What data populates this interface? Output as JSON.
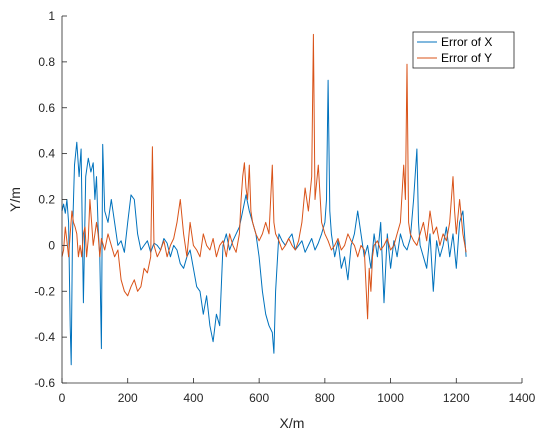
{
  "chart_data": {
    "type": "line",
    "xlabel": "X/m",
    "ylabel": "Y/m",
    "xlim": [
      0,
      1400
    ],
    "ylim": [
      -0.6,
      1
    ],
    "grid": false,
    "legend_placement": "top-right",
    "x_ticks": [
      "0",
      "200",
      "400",
      "600",
      "800",
      "1000",
      "1200",
      "1400"
    ],
    "y_ticks": [
      "-0.6",
      "-0.4",
      "-0.2",
      "0",
      "0.2",
      "0.4",
      "0.6",
      "0.8",
      "1"
    ],
    "series": [
      {
        "name": "Error of X",
        "color": "#0072BD",
        "points": [
          [
            0,
            0.15
          ],
          [
            5,
            0.18
          ],
          [
            10,
            0.14
          ],
          [
            15,
            0.2
          ],
          [
            20,
            0.1
          ],
          [
            25,
            -0.35
          ],
          [
            28,
            -0.52
          ],
          [
            32,
            0.05
          ],
          [
            38,
            0.35
          ],
          [
            45,
            0.45
          ],
          [
            52,
            0.3
          ],
          [
            58,
            0.42
          ],
          [
            65,
            -0.25
          ],
          [
            72,
            0.3
          ],
          [
            80,
            0.38
          ],
          [
            88,
            0.32
          ],
          [
            95,
            0.36
          ],
          [
            100,
            0.2
          ],
          [
            105,
            0.3
          ],
          [
            110,
            0.08
          ],
          [
            115,
            -0.05
          ],
          [
            120,
            -0.45
          ],
          [
            124,
            0.44
          ],
          [
            130,
            0.15
          ],
          [
            140,
            0.1
          ],
          [
            150,
            0.2
          ],
          [
            160,
            0.1
          ],
          [
            170,
            0.0
          ],
          [
            180,
            0.02
          ],
          [
            190,
            -0.03
          ],
          [
            200,
            0.1
          ],
          [
            210,
            0.22
          ],
          [
            220,
            0.2
          ],
          [
            230,
            0.05
          ],
          [
            240,
            -0.02
          ],
          [
            250,
            0.0
          ],
          [
            260,
            0.02
          ],
          [
            270,
            -0.03
          ],
          [
            280,
            0.01
          ],
          [
            290,
            0.0
          ],
          [
            300,
            -0.02
          ],
          [
            310,
            0.03
          ],
          [
            320,
            0.01
          ],
          [
            330,
            -0.05
          ],
          [
            340,
            0.0
          ],
          [
            350,
            -0.02
          ],
          [
            360,
            -0.08
          ],
          [
            370,
            -0.1
          ],
          [
            380,
            -0.05
          ],
          [
            390,
            -0.02
          ],
          [
            400,
            -0.1
          ],
          [
            410,
            -0.18
          ],
          [
            420,
            -0.2
          ],
          [
            430,
            -0.3
          ],
          [
            440,
            -0.22
          ],
          [
            450,
            -0.35
          ],
          [
            460,
            -0.42
          ],
          [
            470,
            -0.3
          ],
          [
            480,
            -0.35
          ],
          [
            490,
            0.0
          ],
          [
            500,
            0.05
          ],
          [
            510,
            -0.02
          ],
          [
            520,
            0.02
          ],
          [
            530,
            0.05
          ],
          [
            540,
            0.08
          ],
          [
            550,
            0.15
          ],
          [
            560,
            0.22
          ],
          [
            570,
            0.15
          ],
          [
            580,
            0.1
          ],
          [
            590,
            0.05
          ],
          [
            600,
            -0.05
          ],
          [
            610,
            -0.2
          ],
          [
            620,
            -0.3
          ],
          [
            630,
            -0.35
          ],
          [
            640,
            -0.38
          ],
          [
            645,
            -0.47
          ],
          [
            650,
            -0.2
          ],
          [
            660,
            0.05
          ],
          [
            670,
            0.02
          ],
          [
            680,
            0.0
          ],
          [
            690,
            0.03
          ],
          [
            700,
            0.05
          ],
          [
            710,
            -0.02
          ],
          [
            720,
            0.0
          ],
          [
            730,
            0.02
          ],
          [
            740,
            -0.03
          ],
          [
            750,
            0.0
          ],
          [
            760,
            0.03
          ],
          [
            770,
            -0.02
          ],
          [
            780,
            0.01
          ],
          [
            790,
            0.05
          ],
          [
            800,
            0.1
          ],
          [
            805,
            0.2
          ],
          [
            810,
            0.72
          ],
          [
            815,
            0.15
          ],
          [
            820,
            0.05
          ],
          [
            830,
            -0.05
          ],
          [
            840,
            0.02
          ],
          [
            850,
            -0.1
          ],
          [
            860,
            -0.05
          ],
          [
            870,
            -0.15
          ],
          [
            880,
            0.0
          ],
          [
            890,
            0.05
          ],
          [
            900,
            0.15
          ],
          [
            910,
            0.05
          ],
          [
            920,
            -0.05
          ],
          [
            930,
            0.0
          ],
          [
            940,
            -0.1
          ],
          [
            950,
            0.05
          ],
          [
            960,
            -0.05
          ],
          [
            970,
            0.1
          ],
          [
            980,
            -0.25
          ],
          [
            990,
            0.05
          ],
          [
            1000,
            -0.1
          ],
          [
            1010,
            0.02
          ],
          [
            1020,
            -0.05
          ],
          [
            1030,
            0.05
          ],
          [
            1040,
            0.0
          ],
          [
            1050,
            -0.02
          ],
          [
            1060,
            0.03
          ],
          [
            1070,
            0.2
          ],
          [
            1080,
            0.42
          ],
          [
            1085,
            0.1
          ],
          [
            1090,
            0.0
          ],
          [
            1100,
            -0.05
          ],
          [
            1110,
            -0.1
          ],
          [
            1120,
            0.05
          ],
          [
            1130,
            -0.2
          ],
          [
            1140,
            0.02
          ],
          [
            1150,
            -0.05
          ],
          [
            1160,
            0.0
          ],
          [
            1170,
            0.08
          ],
          [
            1180,
            -0.05
          ],
          [
            1190,
            0.05
          ],
          [
            1200,
            -0.1
          ],
          [
            1210,
            0.1
          ],
          [
            1220,
            0.15
          ],
          [
            1225,
            0.05
          ],
          [
            1230,
            -0.05
          ]
        ]
      },
      {
        "name": "Error of Y",
        "color": "#D95319",
        "points": [
          [
            0,
            -0.05
          ],
          [
            5,
            -0.02
          ],
          [
            10,
            0.08
          ],
          [
            15,
            0.02
          ],
          [
            20,
            -0.05
          ],
          [
            25,
            0.05
          ],
          [
            30,
            0.15
          ],
          [
            35,
            0.1
          ],
          [
            40,
            0.08
          ],
          [
            45,
            0.05
          ],
          [
            50,
            -0.05
          ],
          [
            55,
            0.0
          ],
          [
            60,
            -0.05
          ],
          [
            65,
            0.05
          ],
          [
            70,
            0.08
          ],
          [
            75,
            -0.05
          ],
          [
            80,
            0.03
          ],
          [
            85,
            0.2
          ],
          [
            90,
            0.1
          ],
          [
            95,
            0.0
          ],
          [
            100,
            0.05
          ],
          [
            105,
            0.1
          ],
          [
            110,
            0.05
          ],
          [
            115,
            -0.05
          ],
          [
            120,
            0.03
          ],
          [
            130,
            -0.02
          ],
          [
            140,
            0.05
          ],
          [
            150,
            0.0
          ],
          [
            160,
            -0.05
          ],
          [
            170,
            -0.02
          ],
          [
            180,
            -0.15
          ],
          [
            190,
            -0.2
          ],
          [
            200,
            -0.22
          ],
          [
            210,
            -0.18
          ],
          [
            220,
            -0.15
          ],
          [
            230,
            -0.2
          ],
          [
            240,
            -0.18
          ],
          [
            250,
            -0.1
          ],
          [
            260,
            -0.12
          ],
          [
            270,
            -0.05
          ],
          [
            275,
            0.43
          ],
          [
            280,
            0.0
          ],
          [
            290,
            -0.05
          ],
          [
            300,
            -0.02
          ],
          [
            310,
            0.02
          ],
          [
            320,
            -0.05
          ],
          [
            330,
            0.0
          ],
          [
            340,
            0.03
          ],
          [
            350,
            0.1
          ],
          [
            360,
            0.2
          ],
          [
            370,
            0.05
          ],
          [
            380,
            -0.05
          ],
          [
            390,
            0.1
          ],
          [
            400,
            0.0
          ],
          [
            410,
            -0.02
          ],
          [
            420,
            -0.05
          ],
          [
            430,
            0.05
          ],
          [
            440,
            0.0
          ],
          [
            450,
            -0.02
          ],
          [
            460,
            0.03
          ],
          [
            470,
            -0.05
          ],
          [
            480,
            0.0
          ],
          [
            490,
            0.02
          ],
          [
            500,
            -0.05
          ],
          [
            510,
            0.05
          ],
          [
            520,
            0.0
          ],
          [
            530,
            -0.03
          ],
          [
            540,
            0.05
          ],
          [
            545,
            0.2
          ],
          [
            550,
            0.3
          ],
          [
            555,
            0.36
          ],
          [
            560,
            0.25
          ],
          [
            565,
            0.2
          ],
          [
            570,
            0.35
          ],
          [
            575,
            0.15
          ],
          [
            580,
            0.1
          ],
          [
            590,
            0.05
          ],
          [
            600,
            0.02
          ],
          [
            610,
            0.05
          ],
          [
            620,
            0.1
          ],
          [
            630,
            0.05
          ],
          [
            640,
            0.35
          ],
          [
            645,
            0.1
          ],
          [
            650,
            0.05
          ],
          [
            660,
            0.02
          ],
          [
            670,
            -0.02
          ],
          [
            680,
            0.0
          ],
          [
            690,
            0.03
          ],
          [
            700,
            0.0
          ],
          [
            710,
            -0.02
          ],
          [
            720,
            0.02
          ],
          [
            730,
            0.1
          ],
          [
            740,
            0.25
          ],
          [
            750,
            0.15
          ],
          [
            760,
            0.3
          ],
          [
            765,
            0.92
          ],
          [
            770,
            0.2
          ],
          [
            780,
            0.35
          ],
          [
            790,
            0.1
          ],
          [
            800,
            0.05
          ],
          [
            810,
            0.02
          ],
          [
            820,
            -0.02
          ],
          [
            830,
            0.0
          ],
          [
            840,
            0.03
          ],
          [
            850,
            -0.02
          ],
          [
            860,
            0.0
          ],
          [
            870,
            0.05
          ],
          [
            880,
            0.02
          ],
          [
            890,
            0.0
          ],
          [
            900,
            -0.05
          ],
          [
            910,
            0.0
          ],
          [
            920,
            -0.02
          ],
          [
            930,
            -0.32
          ],
          [
            935,
            -0.1
          ],
          [
            940,
            -0.2
          ],
          [
            945,
            -0.05
          ],
          [
            950,
            0.0
          ],
          [
            960,
            0.02
          ],
          [
            970,
            -0.02
          ],
          [
            980,
            0.0
          ],
          [
            990,
            0.03
          ],
          [
            1000,
            -0.02
          ],
          [
            1010,
            0.0
          ],
          [
            1020,
            0.05
          ],
          [
            1030,
            0.1
          ],
          [
            1040,
            0.35
          ],
          [
            1045,
            0.2
          ],
          [
            1050,
            0.79
          ],
          [
            1055,
            0.1
          ],
          [
            1060,
            0.05
          ],
          [
            1070,
            0.02
          ],
          [
            1080,
            0.0
          ],
          [
            1090,
            0.05
          ],
          [
            1100,
            0.1
          ],
          [
            1110,
            0.02
          ],
          [
            1120,
            0.15
          ],
          [
            1130,
            0.05
          ],
          [
            1140,
            0.08
          ],
          [
            1150,
            0.0
          ],
          [
            1160,
            0.05
          ],
          [
            1170,
            0.02
          ],
          [
            1180,
            0.1
          ],
          [
            1190,
            0.3
          ],
          [
            1195,
            0.15
          ],
          [
            1200,
            0.05
          ],
          [
            1210,
            0.2
          ],
          [
            1220,
            0.05
          ],
          [
            1230,
            -0.03
          ]
        ]
      }
    ]
  }
}
